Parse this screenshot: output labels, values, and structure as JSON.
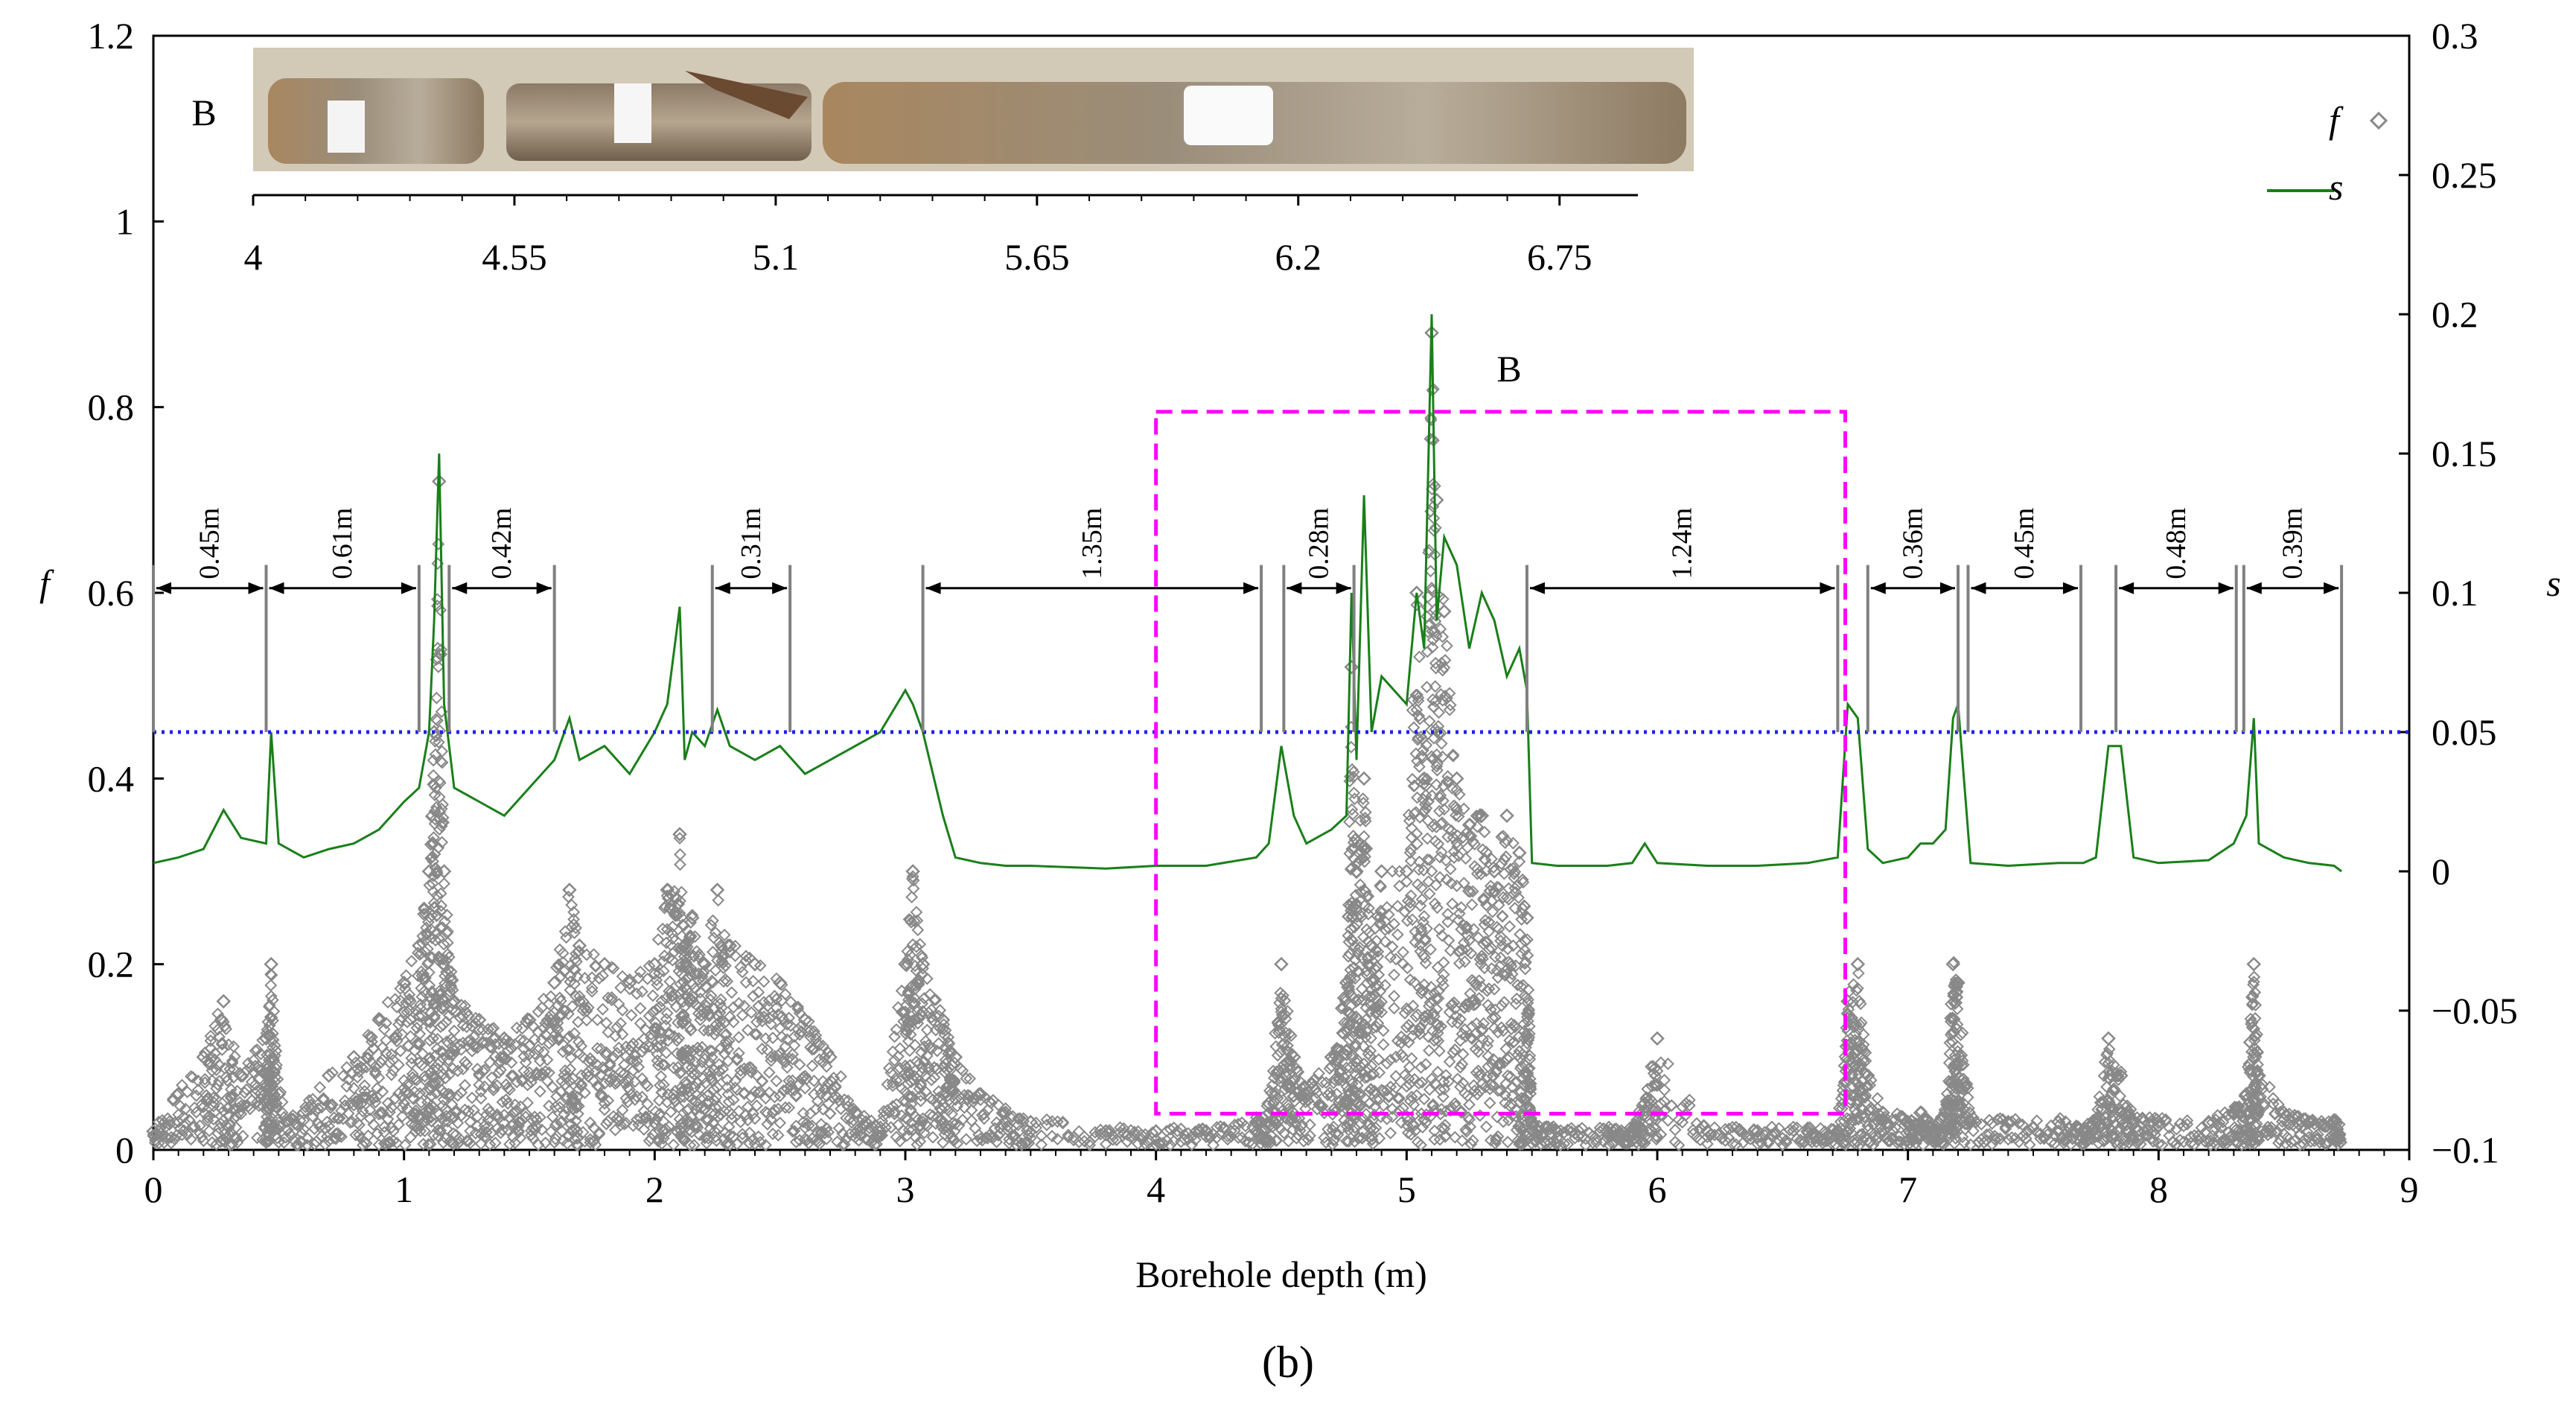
{
  "chart_data": {
    "type": "scatter",
    "panel_label": "(b)",
    "xlabel": "Borehole depth (m)",
    "ylabel_left": "f",
    "ylabel_right": "s",
    "xlim": [
      0,
      9
    ],
    "ylim_left": [
      0,
      1.2
    ],
    "ylim_right": [
      -0.1,
      0.3
    ],
    "x_ticks": [
      "0",
      "1",
      "2",
      "3",
      "4",
      "5",
      "6",
      "7",
      "8",
      "9"
    ],
    "y_left_ticks": [
      "0",
      "0.2",
      "0.4",
      "0.6",
      "0.8",
      "1",
      "1.2"
    ],
    "y_right_ticks": [
      "−0.1",
      "−0.05",
      "0",
      "0.05",
      "0.1",
      "0.15",
      "0.2",
      "0.25",
      "0.3"
    ],
    "threshold_s": 0.05,
    "legend": [
      {
        "symbol": "diamond",
        "label": "f",
        "color": "#888888"
      },
      {
        "symbol": "line",
        "label": "s",
        "color": "#1a7f1a"
      }
    ],
    "highlight_box": {
      "label": "B",
      "x_range": [
        4.0,
        6.75
      ],
      "s_range": [
        -0.087,
        0.165
      ],
      "color": "#ff00ff"
    },
    "inset": {
      "label": "B",
      "scale_ticks": [
        "4",
        "4.55",
        "5.1",
        "5.65",
        "6.2",
        "6.75"
      ]
    },
    "segments": [
      {
        "x0": 0.0,
        "x1": 0.45,
        "label": "0.45m"
      },
      {
        "x0": 0.45,
        "x1": 1.06,
        "label": "0.61m"
      },
      {
        "x0": 1.18,
        "x1": 1.6,
        "label": "0.42m"
      },
      {
        "x0": 2.23,
        "x1": 2.54,
        "label": "0.31m"
      },
      {
        "x0": 3.07,
        "x1": 4.42,
        "label": "1.35m"
      },
      {
        "x0": 4.51,
        "x1": 4.79,
        "label": "0.28m"
      },
      {
        "x0": 5.48,
        "x1": 6.72,
        "label": "1.24m"
      },
      {
        "x0": 6.84,
        "x1": 7.2,
        "label": "0.36m"
      },
      {
        "x0": 7.24,
        "x1": 7.69,
        "label": "0.45m"
      },
      {
        "x0": 7.83,
        "x1": 8.31,
        "label": "0.48m"
      },
      {
        "x0": 8.34,
        "x1": 8.73,
        "label": "0.39m"
      }
    ],
    "series": [
      {
        "name": "s",
        "color": "#1a7f1a",
        "x": [
          0,
          0.1,
          0.2,
          0.28,
          0.35,
          0.45,
          0.47,
          0.5,
          0.6,
          0.7,
          0.8,
          0.9,
          1.0,
          1.06,
          1.1,
          1.12,
          1.14,
          1.16,
          1.2,
          1.3,
          1.4,
          1.5,
          1.6,
          1.66,
          1.7,
          1.8,
          1.9,
          2.0,
          2.05,
          2.1,
          2.12,
          2.15,
          2.2,
          2.25,
          2.3,
          2.4,
          2.5,
          2.6,
          2.7,
          2.8,
          2.9,
          3.0,
          3.03,
          3.07,
          3.15,
          3.2,
          3.3,
          3.4,
          3.5,
          3.8,
          4.0,
          4.2,
          4.4,
          4.45,
          4.5,
          4.55,
          4.6,
          4.7,
          4.76,
          4.78,
          4.8,
          4.83,
          4.86,
          4.9,
          5.0,
          5.04,
          5.07,
          5.1,
          5.12,
          5.15,
          5.2,
          5.25,
          5.3,
          5.35,
          5.4,
          5.45,
          5.48,
          5.5,
          5.6,
          5.8,
          5.9,
          5.95,
          6.0,
          6.2,
          6.4,
          6.6,
          6.72,
          6.76,
          6.8,
          6.84,
          6.9,
          7.0,
          7.05,
          7.1,
          7.15,
          7.18,
          7.2,
          7.25,
          7.4,
          7.6,
          7.7,
          7.75,
          7.8,
          7.85,
          7.9,
          8.0,
          8.2,
          8.3,
          8.35,
          8.38,
          8.4,
          8.5,
          8.6,
          8.7,
          8.73
        ],
        "y": [
          0.003,
          0.005,
          0.008,
          0.022,
          0.012,
          0.01,
          0.05,
          0.01,
          0.005,
          0.008,
          0.01,
          0.015,
          0.025,
          0.03,
          0.05,
          0.09,
          0.15,
          0.06,
          0.03,
          0.025,
          0.02,
          0.03,
          0.04,
          0.055,
          0.04,
          0.045,
          0.035,
          0.05,
          0.06,
          0.095,
          0.04,
          0.05,
          0.045,
          0.058,
          0.045,
          0.04,
          0.045,
          0.035,
          0.04,
          0.045,
          0.05,
          0.065,
          0.06,
          0.05,
          0.02,
          0.005,
          0.003,
          0.002,
          0.002,
          0.001,
          0.002,
          0.002,
          0.005,
          0.01,
          0.045,
          0.02,
          0.01,
          0.015,
          0.02,
          0.1,
          0.04,
          0.135,
          0.05,
          0.07,
          0.06,
          0.1,
          0.08,
          0.2,
          0.09,
          0.12,
          0.11,
          0.08,
          0.1,
          0.09,
          0.07,
          0.08,
          0.065,
          0.003,
          0.002,
          0.002,
          0.003,
          0.01,
          0.003,
          0.002,
          0.002,
          0.003,
          0.005,
          0.06,
          0.055,
          0.008,
          0.003,
          0.005,
          0.01,
          0.01,
          0.015,
          0.055,
          0.06,
          0.003,
          0.002,
          0.003,
          0.003,
          0.005,
          0.045,
          0.045,
          0.005,
          0.003,
          0.004,
          0.01,
          0.02,
          0.055,
          0.01,
          0.005,
          0.003,
          0.002,
          0.0
        ]
      },
      {
        "name": "f",
        "color": "#888888",
        "x": [
          0.0,
          0.1,
          0.2,
          0.28,
          0.35,
          0.45,
          0.47,
          0.5,
          0.6,
          0.7,
          0.8,
          0.9,
          1.0,
          1.06,
          1.1,
          1.12,
          1.14,
          1.16,
          1.2,
          1.3,
          1.4,
          1.5,
          1.6,
          1.66,
          1.7,
          1.8,
          1.9,
          2.0,
          2.05,
          2.1,
          2.12,
          2.15,
          2.2,
          2.25,
          2.3,
          2.4,
          2.5,
          2.6,
          2.7,
          2.8,
          2.9,
          3.0,
          3.03,
          3.07,
          3.15,
          3.2,
          3.3,
          3.4,
          3.5,
          3.8,
          4.0,
          4.2,
          4.4,
          4.45,
          4.5,
          4.55,
          4.6,
          4.7,
          4.76,
          4.78,
          4.8,
          4.83,
          4.86,
          4.9,
          5.0,
          5.04,
          5.07,
          5.1,
          5.12,
          5.15,
          5.2,
          5.25,
          5.3,
          5.35,
          5.4,
          5.45,
          5.48,
          5.5,
          5.6,
          5.8,
          5.9,
          5.95,
          6.0,
          6.2,
          6.4,
          6.6,
          6.72,
          6.76,
          6.8,
          6.84,
          6.9,
          7.0,
          7.05,
          7.1,
          7.15,
          7.18,
          7.2,
          7.25,
          7.4,
          7.6,
          7.7,
          7.75,
          7.8,
          7.85,
          7.9,
          8.0,
          8.2,
          8.3,
          8.35,
          8.38,
          8.4,
          8.5,
          8.6,
          8.7,
          8.73
        ],
        "y": [
          0.02,
          0.06,
          0.1,
          0.16,
          0.08,
          0.12,
          0.2,
          0.06,
          0.04,
          0.08,
          0.1,
          0.14,
          0.18,
          0.22,
          0.3,
          0.45,
          0.72,
          0.3,
          0.16,
          0.14,
          0.12,
          0.14,
          0.18,
          0.28,
          0.22,
          0.2,
          0.18,
          0.2,
          0.28,
          0.34,
          0.22,
          0.25,
          0.2,
          0.28,
          0.22,
          0.2,
          0.18,
          0.14,
          0.1,
          0.04,
          0.02,
          0.2,
          0.3,
          0.2,
          0.14,
          0.1,
          0.06,
          0.04,
          0.03,
          0.02,
          0.02,
          0.02,
          0.03,
          0.05,
          0.2,
          0.1,
          0.06,
          0.1,
          0.18,
          0.52,
          0.3,
          0.4,
          0.22,
          0.3,
          0.3,
          0.6,
          0.4,
          0.88,
          0.7,
          0.58,
          0.4,
          0.35,
          0.36,
          0.3,
          0.36,
          0.32,
          0.25,
          0.03,
          0.02,
          0.02,
          0.02,
          0.05,
          0.12,
          0.02,
          0.02,
          0.02,
          0.02,
          0.16,
          0.2,
          0.08,
          0.04,
          0.03,
          0.04,
          0.02,
          0.04,
          0.2,
          0.18,
          0.03,
          0.03,
          0.03,
          0.02,
          0.03,
          0.12,
          0.08,
          0.03,
          0.03,
          0.03,
          0.04,
          0.06,
          0.2,
          0.08,
          0.04,
          0.03,
          0.03,
          0.02
        ]
      }
    ]
  }
}
